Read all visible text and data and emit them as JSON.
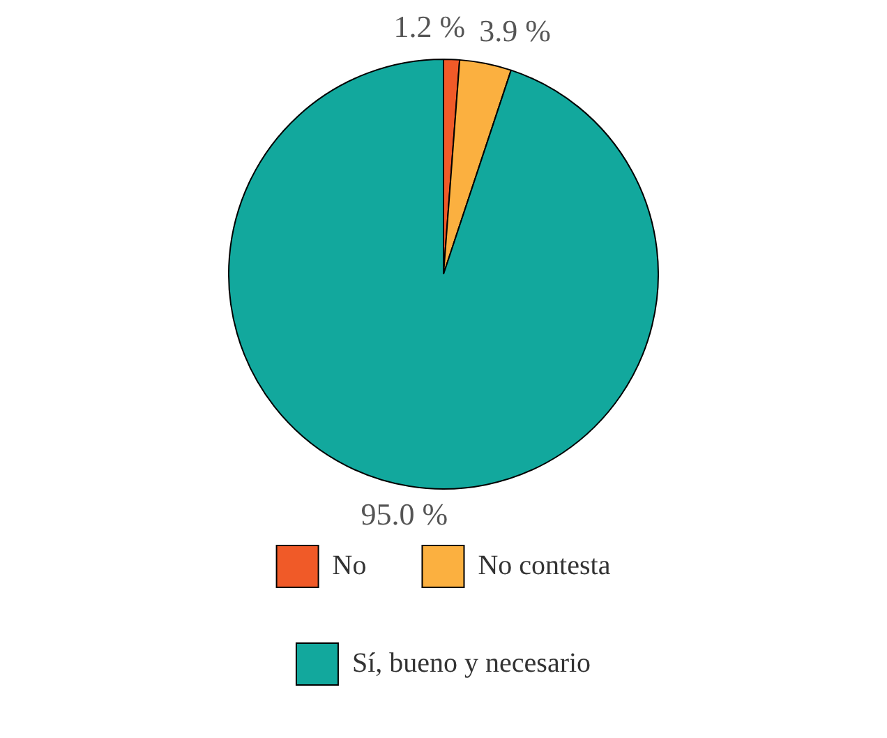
{
  "chart_data": {
    "type": "pie",
    "categories": [
      "No",
      "No contesta",
      "Sí, bueno y necesario"
    ],
    "values": [
      1.2,
      3.9,
      95.0
    ],
    "colors": [
      "#f05a28",
      "#fbb040",
      "#12a89d"
    ],
    "value_labels": [
      "1.2 %",
      "3.9 %",
      "95.0 %"
    ],
    "legend": "bottom"
  }
}
